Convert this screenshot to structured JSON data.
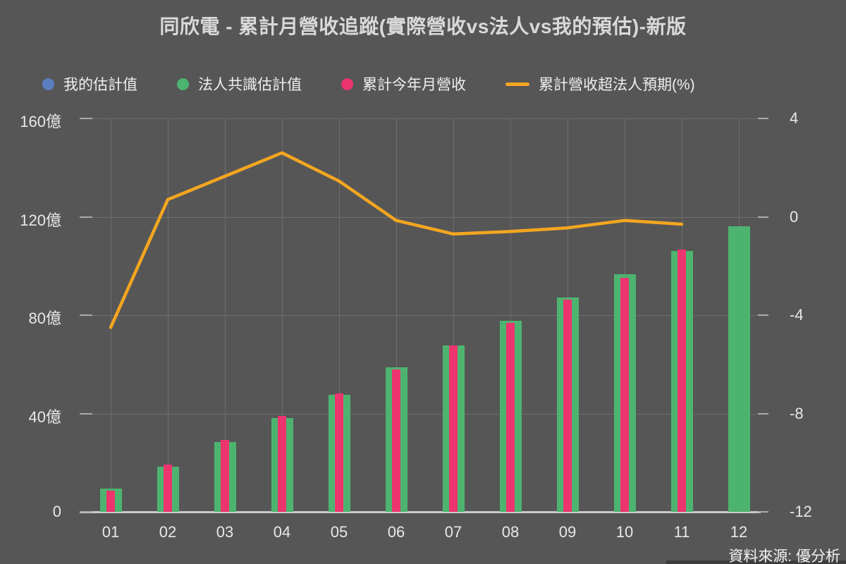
{
  "title": "同欣電 - 累計月營收追蹤(實際營收vs法人vs我的預估)-新版",
  "source": "資料來源: 優分析",
  "colors": {
    "background": "#565656",
    "my_estimate_blue": "#5b7ec1",
    "consensus_green": "#4db470",
    "actual_pink": "#ec346e",
    "surprise_orange": "#f4a620",
    "grid": "#6e6e6e",
    "axis_line": "#c8c8cd",
    "text": "#e8e8e8"
  },
  "legend": [
    {
      "label": "我的估計值",
      "color": "#5b7ec1",
      "marker": "dot"
    },
    {
      "label": "法人共識估計值",
      "color": "#4db470",
      "marker": "dot"
    },
    {
      "label": "累計今年月營收",
      "color": "#ec346e",
      "marker": "dot"
    },
    {
      "label": "累計營收超法人預期(%)",
      "color": "#f4a620",
      "marker": "line"
    }
  ],
  "chart_data": {
    "type": "bar",
    "subtype": "bar+line combo, dual y-axis",
    "categories": [
      "01",
      "02",
      "03",
      "04",
      "05",
      "06",
      "07",
      "08",
      "09",
      "10",
      "11",
      "12"
    ],
    "unit_left": "億",
    "series": [
      {
        "name": "我的估計值",
        "type": "bar",
        "color": "#5b7ec1",
        "axis": "left",
        "values": [
          null,
          null,
          null,
          null,
          null,
          null,
          null,
          null,
          null,
          null,
          null,
          null
        ],
        "note": "in legend but no bars visible in plot"
      },
      {
        "name": "法人共識估計值",
        "type": "bar",
        "color": "#4db470",
        "axis": "left",
        "values": [
          9.4,
          18.4,
          28.5,
          38.0,
          47.5,
          58.7,
          67.8,
          77.6,
          87.2,
          96.5,
          106.2,
          116.0
        ]
      },
      {
        "name": "累計今年月營收",
        "type": "bar-overlay",
        "color": "#ec346e",
        "axis": "left",
        "values": [
          8.6,
          19.1,
          29.2,
          39.1,
          48.3,
          57.9,
          67.6,
          76.9,
          86.4,
          95.3,
          106.7,
          null
        ]
      },
      {
        "name": "累計營收超法人預期(%)",
        "type": "line",
        "color": "#f4a620",
        "axis": "right",
        "values": [
          -4.5,
          0.7,
          1.65,
          2.6,
          1.45,
          -0.15,
          -0.7,
          -0.6,
          -0.45,
          -0.15,
          -0.3,
          null
        ]
      }
    ],
    "left_axis": {
      "tick_labels": [
        "160億",
        "120億",
        "80億",
        "40億",
        "0"
      ],
      "tick_values": [
        160,
        120,
        80,
        40,
        0
      ],
      "min": 0,
      "max": 160
    },
    "right_axis": {
      "tick_labels": [
        "4",
        "0",
        "-4",
        "-8",
        "-12"
      ],
      "tick_values": [
        4,
        0,
        -4,
        -8,
        -12
      ],
      "min": -12,
      "max": 4
    },
    "grid": true,
    "legend_position": "top-left"
  }
}
